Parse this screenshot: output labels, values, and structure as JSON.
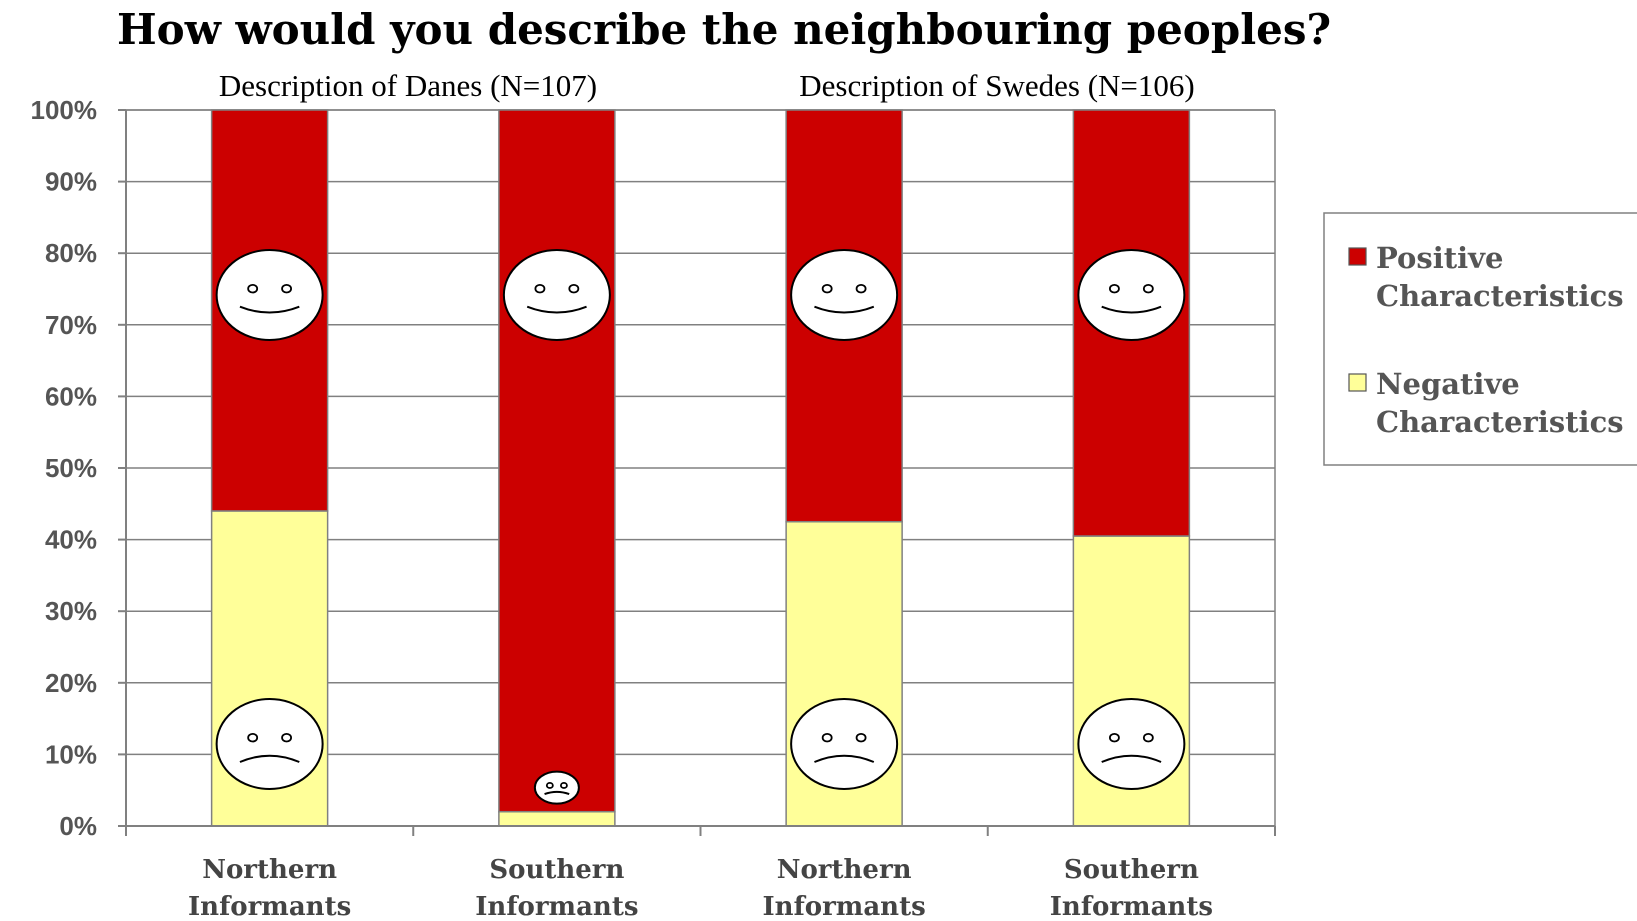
{
  "chart_data": {
    "type": "bar",
    "stacked": true,
    "title": "How would you describe the neighbouring peoples?",
    "panels": [
      {
        "title": "Description of Danes (N=107)"
      },
      {
        "title": "Description of Swedes (N=106)"
      }
    ],
    "categories": [
      "Northern Informants",
      "Southern Informants",
      "Northern Informants",
      "Southern Informants"
    ],
    "category_lines": [
      [
        "Northern",
        "Informants"
      ],
      [
        "Southern",
        "Informants"
      ],
      [
        "Northern",
        "Informants"
      ],
      [
        "Southern",
        "Informants"
      ]
    ],
    "series": [
      {
        "name": "Negative Characteristics",
        "legend_lines": [
          "Negative",
          "Characteristics"
        ],
        "color": "#FFFF99",
        "values": [
          44,
          2,
          42.5,
          40.5
        ],
        "icon": "sad-face-icon"
      },
      {
        "name": "Positive Characteristics",
        "legend_lines": [
          "Positive",
          "Characteristics"
        ],
        "color": "#CC0000",
        "values": [
          56,
          98,
          57.5,
          59.5
        ],
        "icon": "happy-face-icon"
      }
    ],
    "legend_order": [
      "Positive Characteristics",
      "Negative Characteristics"
    ],
    "ylim": [
      0,
      100
    ],
    "yticks": [
      0,
      10,
      20,
      30,
      40,
      50,
      60,
      70,
      80,
      90,
      100
    ],
    "ytick_labels": [
      "0%",
      "10%",
      "20%",
      "30%",
      "40%",
      "50%",
      "60%",
      "70%",
      "80%",
      "90%",
      "100%"
    ],
    "grid": true,
    "legend_position": "right",
    "xlabel": "",
    "ylabel": ""
  }
}
